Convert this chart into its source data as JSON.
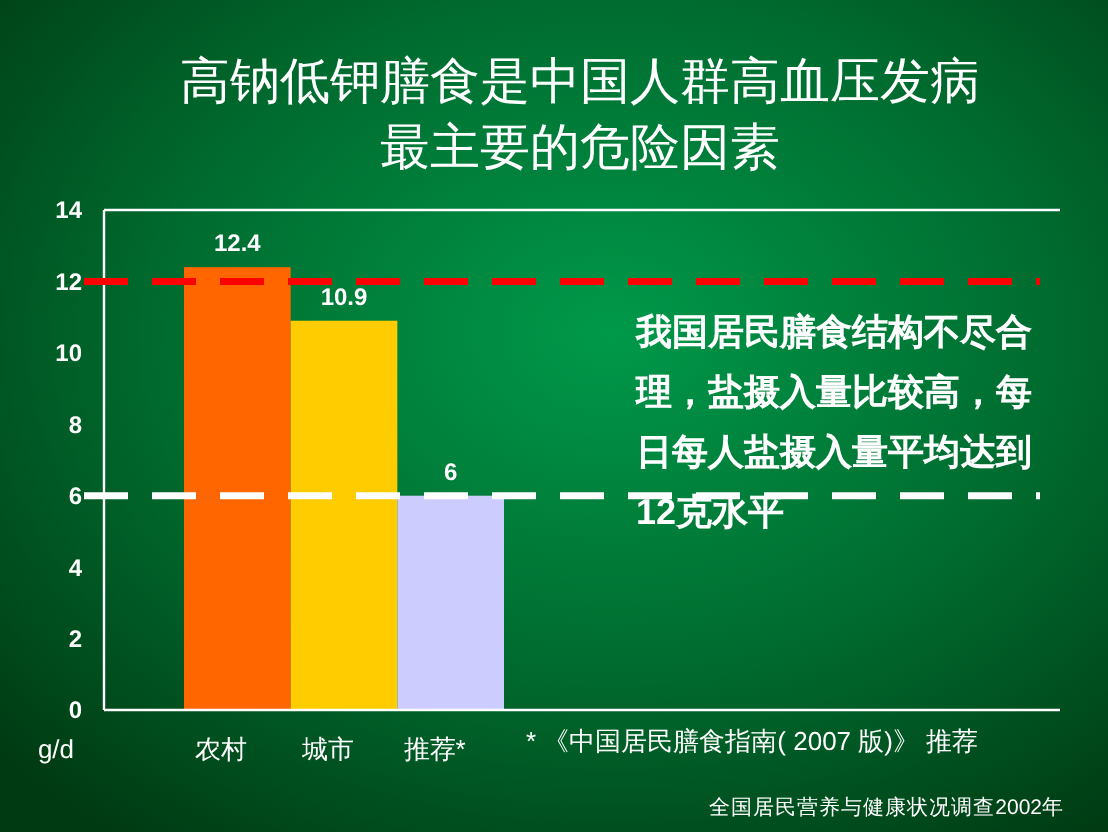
{
  "chart_data": {
    "type": "bar",
    "title": "高钠低钾膳食是中国人群高血压发病最主要的危险因素",
    "ylabel": "g/d",
    "categories": [
      "农村",
      "城市",
      "推荐*"
    ],
    "values": [
      12.4,
      10.9,
      6
    ],
    "colors": [
      "#ff6600",
      "#ffcc00",
      "#ccccff"
    ],
    "ylim": [
      0,
      14
    ],
    "yticks": [
      0,
      2,
      4,
      6,
      8,
      10,
      12,
      14
    ],
    "grid": false,
    "data_labels": true,
    "ref_lines": [
      {
        "axis": "y",
        "value": 12,
        "color": "#ff0000",
        "line_style": "dashed"
      },
      {
        "axis": "y",
        "value": 6,
        "color": "#ffffff",
        "line_style": "dashed"
      }
    ],
    "annotations": [
      "我国居民膳食结构不尽合理，盐摄入量比较高，每日每人盐摄入量平均达到12克水平",
      "* 《中国居民膳食指南( 2007 版)》 推荐",
      "全国居民营养与健康状况调查2002年"
    ]
  }
}
